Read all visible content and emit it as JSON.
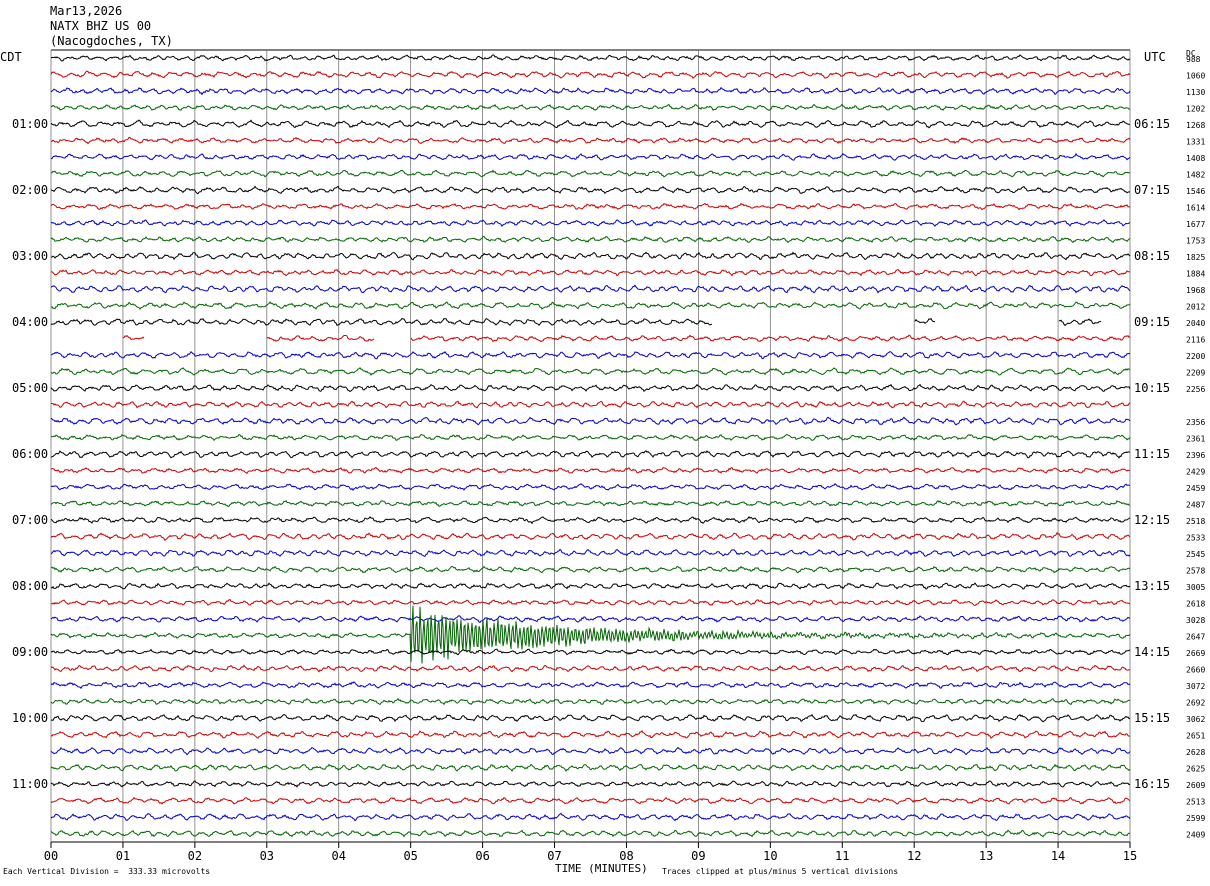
{
  "header": {
    "date": "Mar13,2026",
    "station": "NATX BHZ US 00",
    "location": "(Nacogdoches, TX)"
  },
  "left_tz": "CDT",
  "right_tz": "UTC",
  "dc_label": "DC",
  "footer": {
    "vertical_division": "Each Vertical Division =  333.33 microvolts",
    "clip_note": "Traces clipped at plus/minus 5 vertical divisions"
  },
  "chart_data": {
    "type": "line",
    "plot_kind": "helicorder",
    "xlabel": "TIME (MINUTES)",
    "x_ticks": [
      "00",
      "01",
      "02",
      "03",
      "04",
      "05",
      "06",
      "07",
      "08",
      "09",
      "10",
      "11",
      "12",
      "13",
      "14",
      "15"
    ],
    "xlim": [
      0,
      15
    ],
    "minutes_per_trace": 15,
    "trace_count": 48,
    "trace_colors": [
      "#000000",
      "#cc0000",
      "#0000cc",
      "#006600"
    ],
    "left_hour_labels": [
      "01:00",
      "02:00",
      "03:00",
      "04:00",
      "05:00",
      "06:00",
      "07:00",
      "08:00",
      "09:00",
      "10:00",
      "11:00"
    ],
    "right_hour_labels": [
      "06:15",
      "07:15",
      "08:15",
      "09:15",
      "10:15",
      "11:15",
      "12:15",
      "13:15",
      "14:15",
      "15:15",
      "16:15"
    ],
    "right_values": [
      "988",
      "1060",
      "1130",
      "1202",
      "1268",
      "1331",
      "1408",
      "1482",
      "1546",
      "1614",
      "1677",
      "1753",
      "1825",
      "1884",
      "1968",
      "2012",
      "2040",
      "2116",
      "2200",
      "2209",
      "2256",
      "",
      "2356",
      "2361",
      "2396",
      "2429",
      "2459",
      "2487",
      "2518",
      "2533",
      "2545",
      "2578",
      "3005",
      "2618",
      "3028",
      "2647",
      "2669",
      "2660",
      "3072",
      "2692",
      "3062",
      "2651",
      "2628",
      "2625",
      "2609",
      "2513",
      "2599",
      "2409"
    ],
    "data_gaps": [
      {
        "trace": 16,
        "from_min": 9.2,
        "to_min": 12.0
      },
      {
        "trace": 16,
        "from_min": 12.3,
        "to_min": 14.0
      },
      {
        "trace": 16,
        "from_min": 14.6,
        "to_min": 15.0
      },
      {
        "trace": 17,
        "from_min": 0.0,
        "to_min": 1.0
      },
      {
        "trace": 17,
        "from_min": 1.3,
        "to_min": 3.0
      },
      {
        "trace": 17,
        "from_min": 4.5,
        "to_min": 5.0
      }
    ],
    "events": [
      {
        "trace": 35,
        "start_min": 5.0,
        "peak_divisions": 3.0,
        "duration_min": 6.0
      }
    ]
  }
}
